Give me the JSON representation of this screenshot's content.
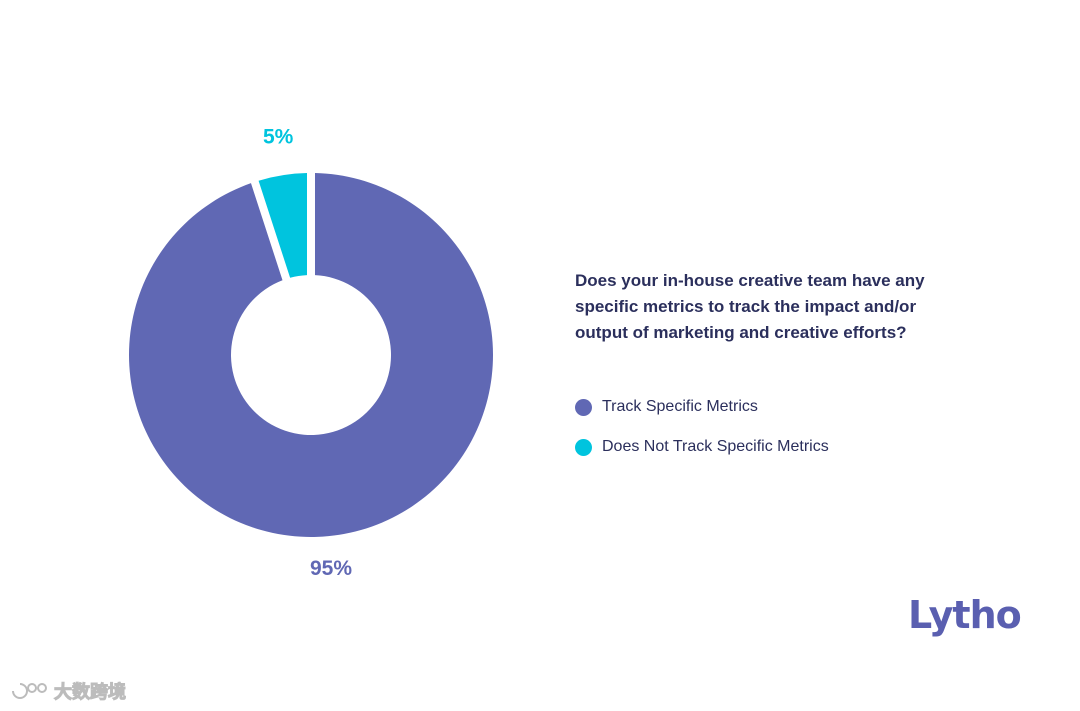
{
  "chart_data": {
    "type": "pie",
    "title": "Does your in-house creative team have any specific metrics to track the impact and/or output of marketing and creative efforts?",
    "slices": [
      {
        "name": "Track Specific Metrics",
        "value": 95,
        "label": "95%",
        "color": "#6068b4"
      },
      {
        "name": "Does Not Track Specific Metrics",
        "value": 5,
        "label": "5%",
        "color": "#00c4de"
      }
    ],
    "legend_position": "right"
  },
  "brand": {
    "logo_text": "Lytho",
    "color": "#5a5fb0"
  },
  "watermark": {
    "text": "大数跨境",
    "icon": "watermark-logo-icon"
  }
}
